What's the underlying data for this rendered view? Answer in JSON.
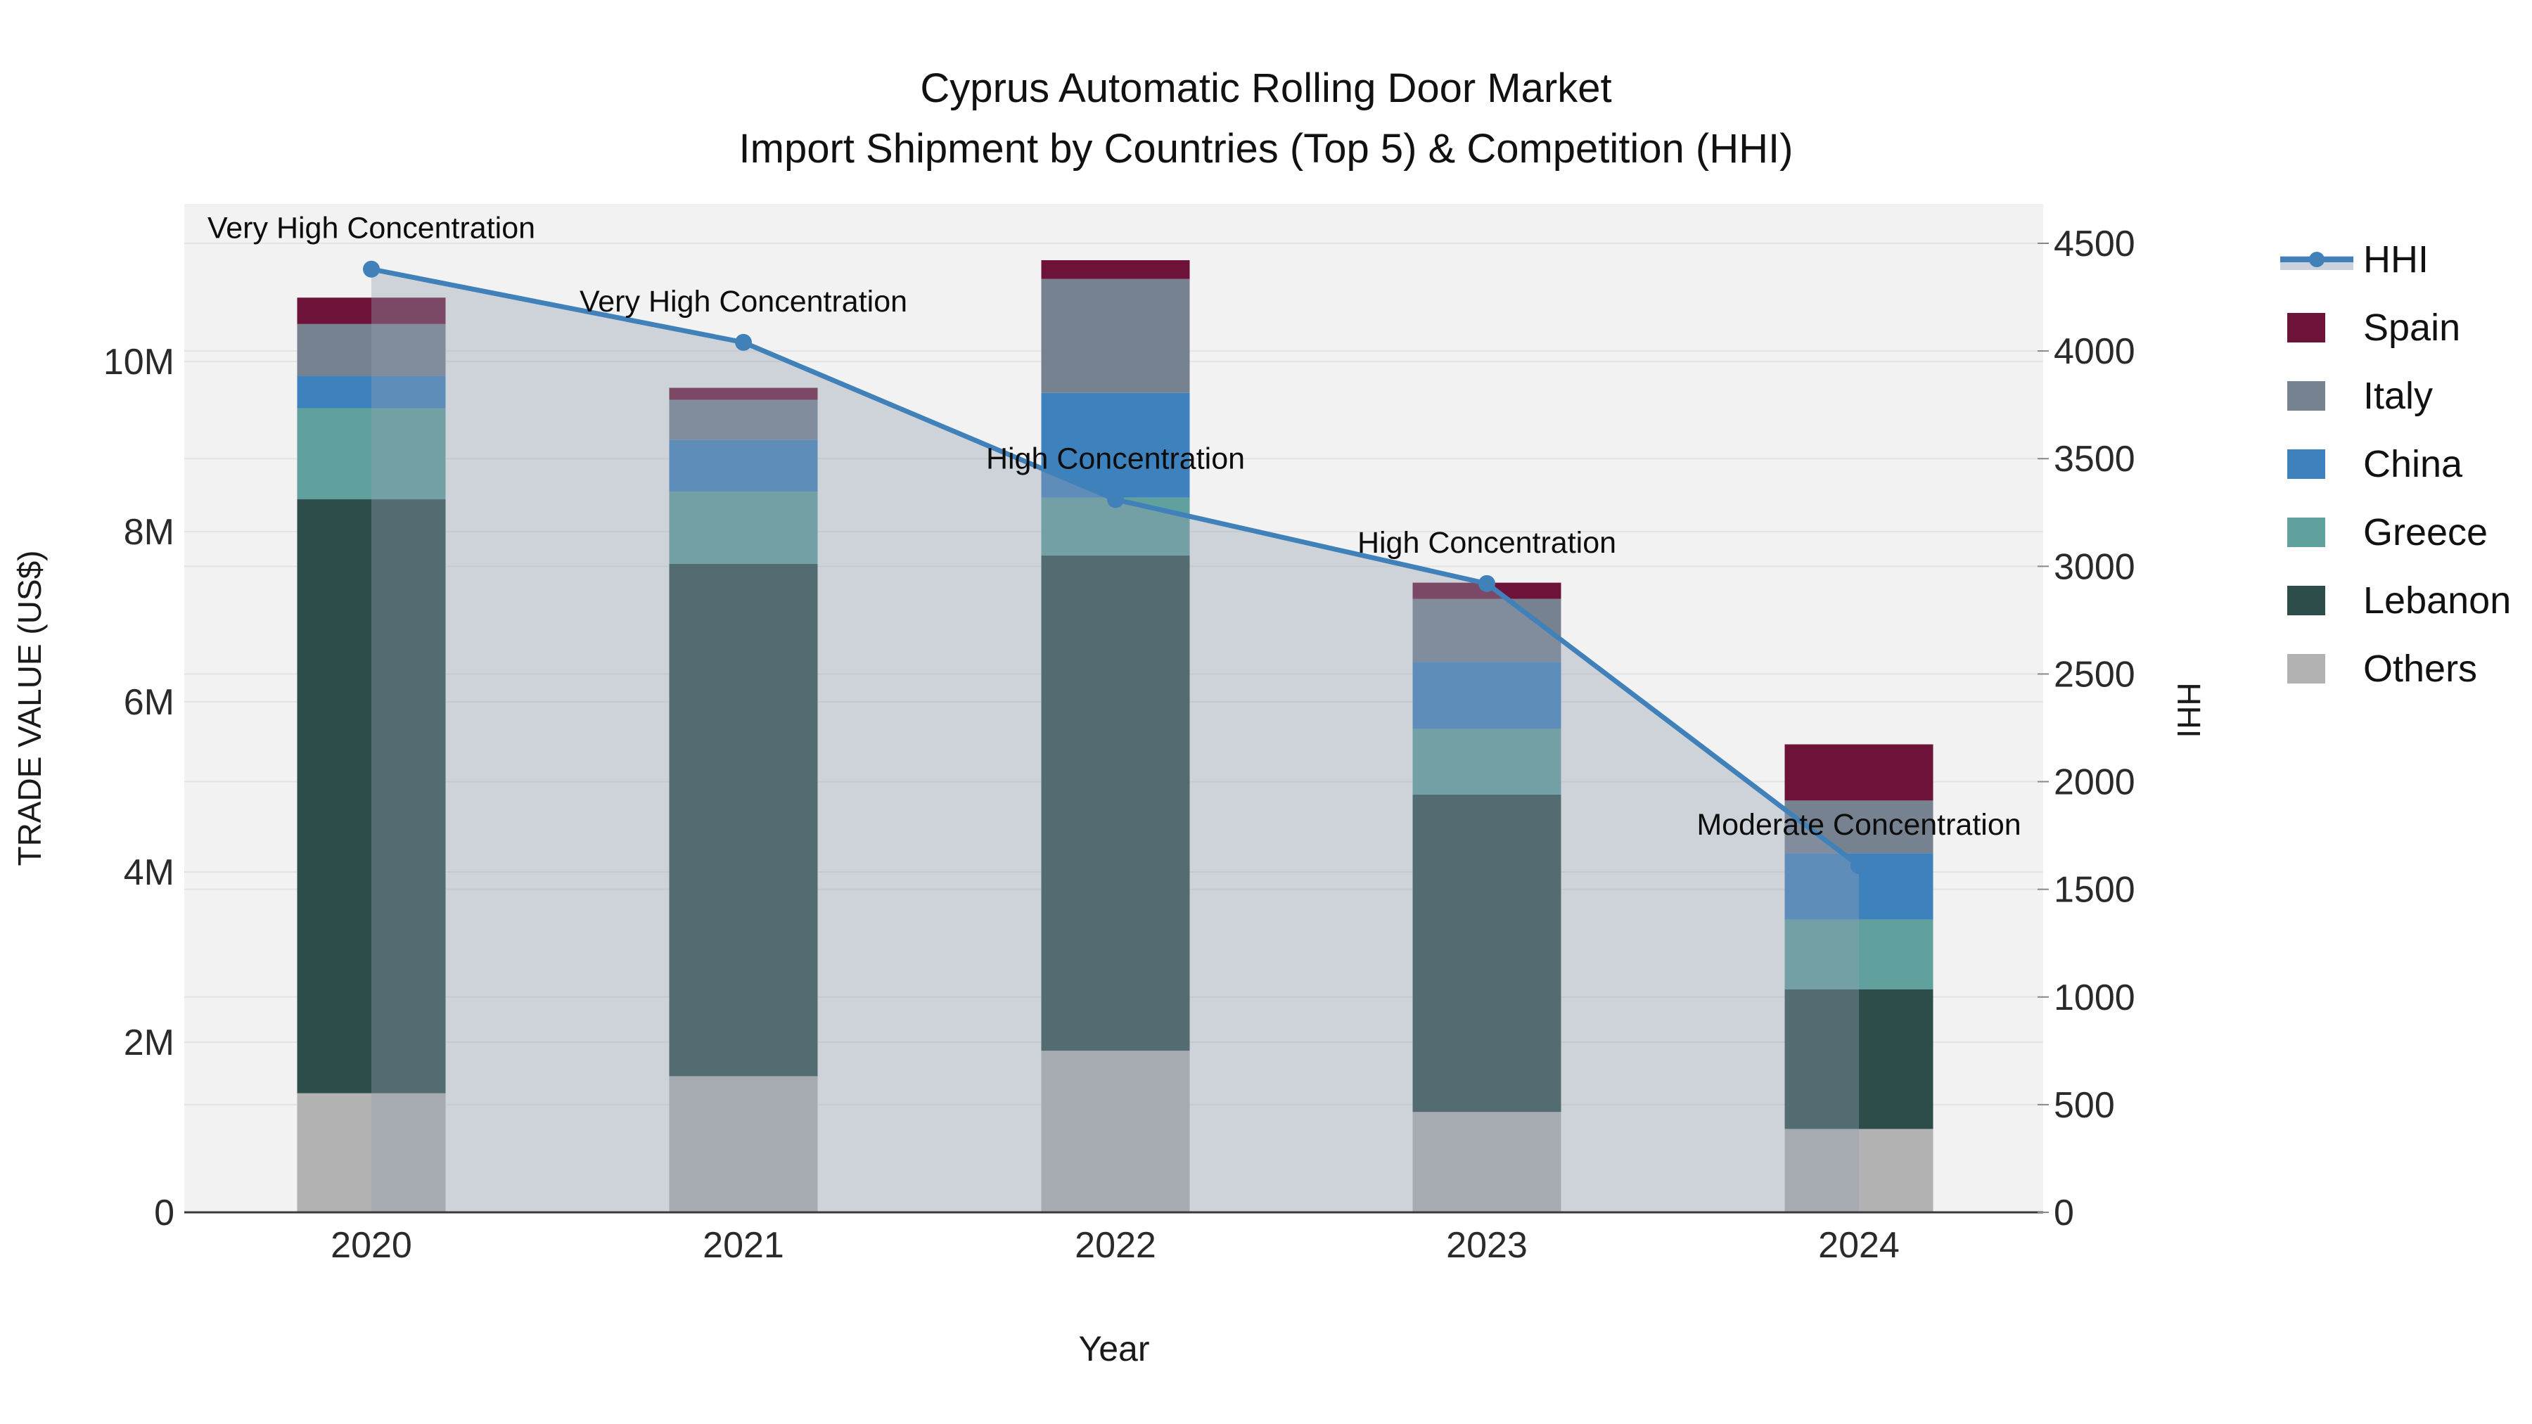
{
  "title": {
    "line1": "Cyprus Automatic Rolling Door Market",
    "line2": "Import Shipment by Countries (Top 5) & Competition (HHI)"
  },
  "axes": {
    "left_title": "TRADE VALUE (US$)",
    "right_title": "HHI",
    "x_title": "Year",
    "left_ticks": [
      "0",
      "2M",
      "4M",
      "6M",
      "8M",
      "10M"
    ],
    "right_ticks": [
      "0",
      "500",
      "1000",
      "1500",
      "2000",
      "2500",
      "3000",
      "3500",
      "4000",
      "4500"
    ]
  },
  "legend": {
    "hhi_label": "HHI",
    "items": [
      "Spain",
      "Italy",
      "China",
      "Greece",
      "Lebanon",
      "Others"
    ]
  },
  "chart_data": {
    "type": "bar",
    "subtype": "stacked-bars-with-line-overlay",
    "title": "Cyprus Automatic Rolling Door Market — Import Shipment by Countries (Top 5) & Competition (HHI)",
    "xlabel": "Year",
    "ylabel_left": "TRADE VALUE (US$)",
    "ylabel_right": "HHI",
    "ylim_left_musd": [
      0,
      11.85
    ],
    "ylim_right_hhi": [
      0,
      4688
    ],
    "grid": true,
    "legend_position": "right",
    "categories": [
      "2020",
      "2021",
      "2022",
      "2023",
      "2024"
    ],
    "series": [
      {
        "name": "Spain",
        "color": "#6d1238",
        "values_musd": [
          0.31,
          0.14,
          0.22,
          0.19,
          0.66
        ]
      },
      {
        "name": "Italy",
        "color": "#76828f",
        "values_musd": [
          0.61,
          0.47,
          1.34,
          0.74,
          0.62
        ]
      },
      {
        "name": "China",
        "color": "#3e82bd",
        "values_musd": [
          0.38,
          0.61,
          1.23,
          0.79,
          0.78
        ]
      },
      {
        "name": "Greece",
        "color": "#60a09d",
        "values_musd": [
          1.07,
          0.85,
          0.68,
          0.77,
          0.82
        ]
      },
      {
        "name": "Lebanon",
        "color": "#2c4d49",
        "values_musd": [
          6.98,
          6.02,
          5.82,
          3.73,
          1.64
        ]
      },
      {
        "name": "Others",
        "color": "#b2b2b2",
        "values_musd": [
          1.4,
          1.6,
          1.9,
          1.18,
          0.98
        ]
      }
    ],
    "totals_musd": [
      10.75,
      9.69,
      11.19,
      7.4,
      5.5
    ],
    "hhi_line": {
      "name": "HHI",
      "color": "#4181ba",
      "area_fill": "rgba(148,160,180,0.38)",
      "values": [
        4380,
        4040,
        3310,
        2920,
        1610
      ]
    },
    "annotations": [
      {
        "year": "2020",
        "text": "Very High Concentration"
      },
      {
        "year": "2021",
        "text": "Very High Concentration"
      },
      {
        "year": "2022",
        "text": "High Concentration"
      },
      {
        "year": "2023",
        "text": "High Concentration"
      },
      {
        "year": "2024",
        "text": "Moderate Concentration"
      }
    ]
  },
  "colors": {
    "plot_bg": "#f2f2f2",
    "gridline": "#e4e4e4",
    "axis_line": "#3a3a3a",
    "tick_text": "#2a2a2a",
    "annotation_text": "#0d0d0d"
  }
}
